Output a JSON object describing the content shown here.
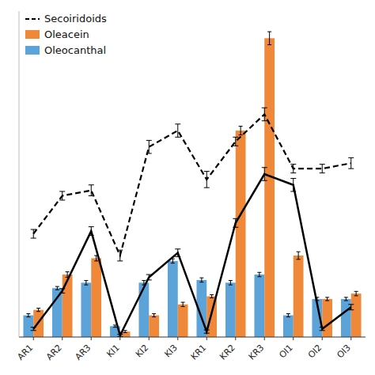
{
  "chart_data": {
    "type": "bar",
    "categories": [
      "AR1",
      "AR2",
      "AR3",
      "KI1",
      "KI2",
      "KI3",
      "KR1",
      "KR2",
      "KR3",
      "OI1",
      "OI2",
      "OI3"
    ],
    "series": [
      {
        "name": "Oleocanthal",
        "type": "bar",
        "color": "#5BA3D9",
        "values": [
          4.0,
          9.0,
          10.0,
          2.0,
          10.0,
          14.0,
          10.5,
          10.0,
          11.5,
          4.0,
          7.0,
          7.0
        ],
        "errors": [
          0.3,
          0.3,
          0.4,
          0.2,
          0.4,
          0.4,
          0.4,
          0.4,
          0.4,
          0.3,
          0.3,
          0.3
        ]
      },
      {
        "name": "Oleacein",
        "type": "bar",
        "color": "#F0883A",
        "values": [
          5.0,
          11.5,
          14.5,
          1.0,
          4.0,
          6.0,
          7.5,
          38.0,
          55.0,
          15.0,
          7.0,
          8.0
        ],
        "errors": [
          0.3,
          0.5,
          0.5,
          0.2,
          0.3,
          0.4,
          0.3,
          0.8,
          1.2,
          0.7,
          0.3,
          0.4
        ]
      },
      {
        "name": "Secoiridoids",
        "type": "line",
        "color": "#000000",
        "line_style": "dashed",
        "values": [
          19.0,
          26.0,
          27.0,
          15.0,
          35.0,
          38.0,
          29.0,
          36.0,
          41.0,
          31.0,
          31.0,
          32.0
        ],
        "errors": [
          0.8,
          0.8,
          1.0,
          1.0,
          1.2,
          1.2,
          1.5,
          0.8,
          1.2,
          0.8,
          0.8,
          1.0
        ]
      },
      {
        "type": "line",
        "color": "#000000",
        "line_style": "solid",
        "values": [
          1.5,
          8.5,
          19.5,
          0.3,
          11.0,
          15.5,
          1.0,
          21.0,
          30.0,
          28.0,
          1.5,
          5.5
        ],
        "errors": [
          0.3,
          0.4,
          0.8,
          0.2,
          0.5,
          0.7,
          0.3,
          0.8,
          1.2,
          1.2,
          0.3,
          0.5
        ]
      }
    ],
    "ylim": [
      0,
      60
    ],
    "grid": false,
    "legend": "upper left",
    "tick_labels": "x"
  }
}
